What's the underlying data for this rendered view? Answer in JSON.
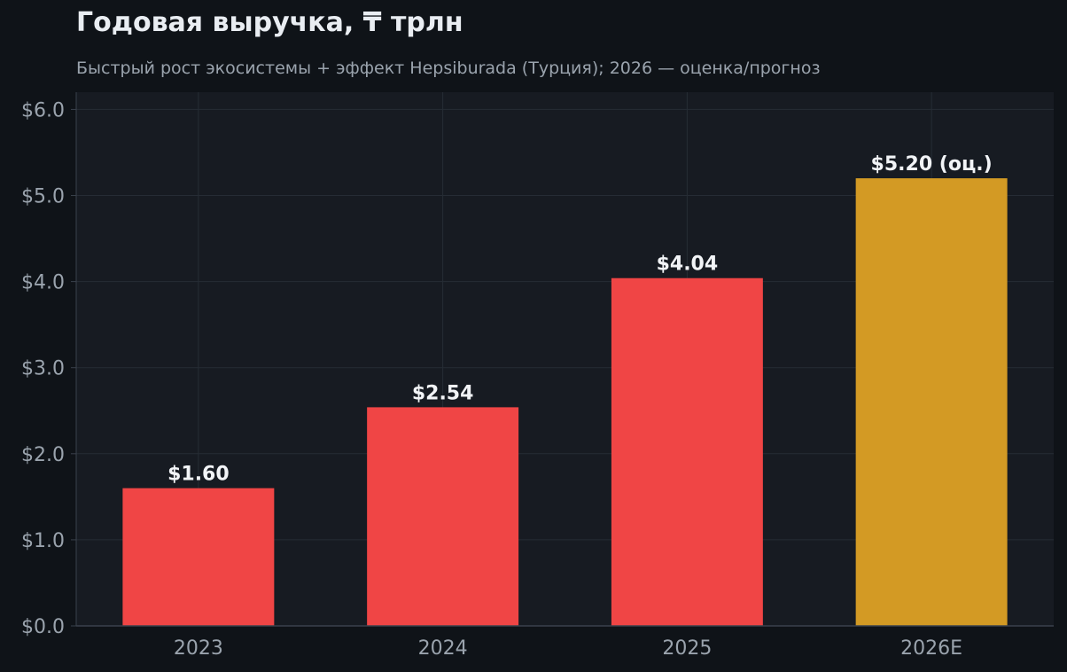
{
  "chart_data": {
    "type": "bar",
    "title": "Годовая выручка, ₸ трлн",
    "subtitle": "Быстрый рост экосистемы + эффект Hepsiburada (Турция); 2026 — оценка/прогноз",
    "xlabel": "",
    "ylabel": "",
    "categories": [
      "2023",
      "2024",
      "2025",
      "2026E"
    ],
    "values": [
      1.6,
      2.54,
      4.04,
      5.2
    ],
    "value_labels": [
      "$1.60",
      "$2.54",
      "$4.04",
      "$5.20 (оц.)"
    ],
    "ylim": [
      0,
      6.2
    ],
    "yticks": [
      0,
      1,
      2,
      3,
      4,
      5,
      6
    ],
    "ytick_labels": [
      "$0.0",
      "$1.0",
      "$2.0",
      "$3.0",
      "$4.0",
      "$5.0",
      "$6.0"
    ],
    "grid": true,
    "legend": "none",
    "colors": {
      "actual": "#f04545",
      "estimate": "#d39a24",
      "background": "#0f1318",
      "plot_background": "#171b22",
      "grid": "#262c35",
      "tick_text": "#9aa3ad",
      "value_text": "#f2f4f7"
    },
    "bar_colors": [
      "#f04545",
      "#f04545",
      "#f04545",
      "#d39a24"
    ]
  }
}
